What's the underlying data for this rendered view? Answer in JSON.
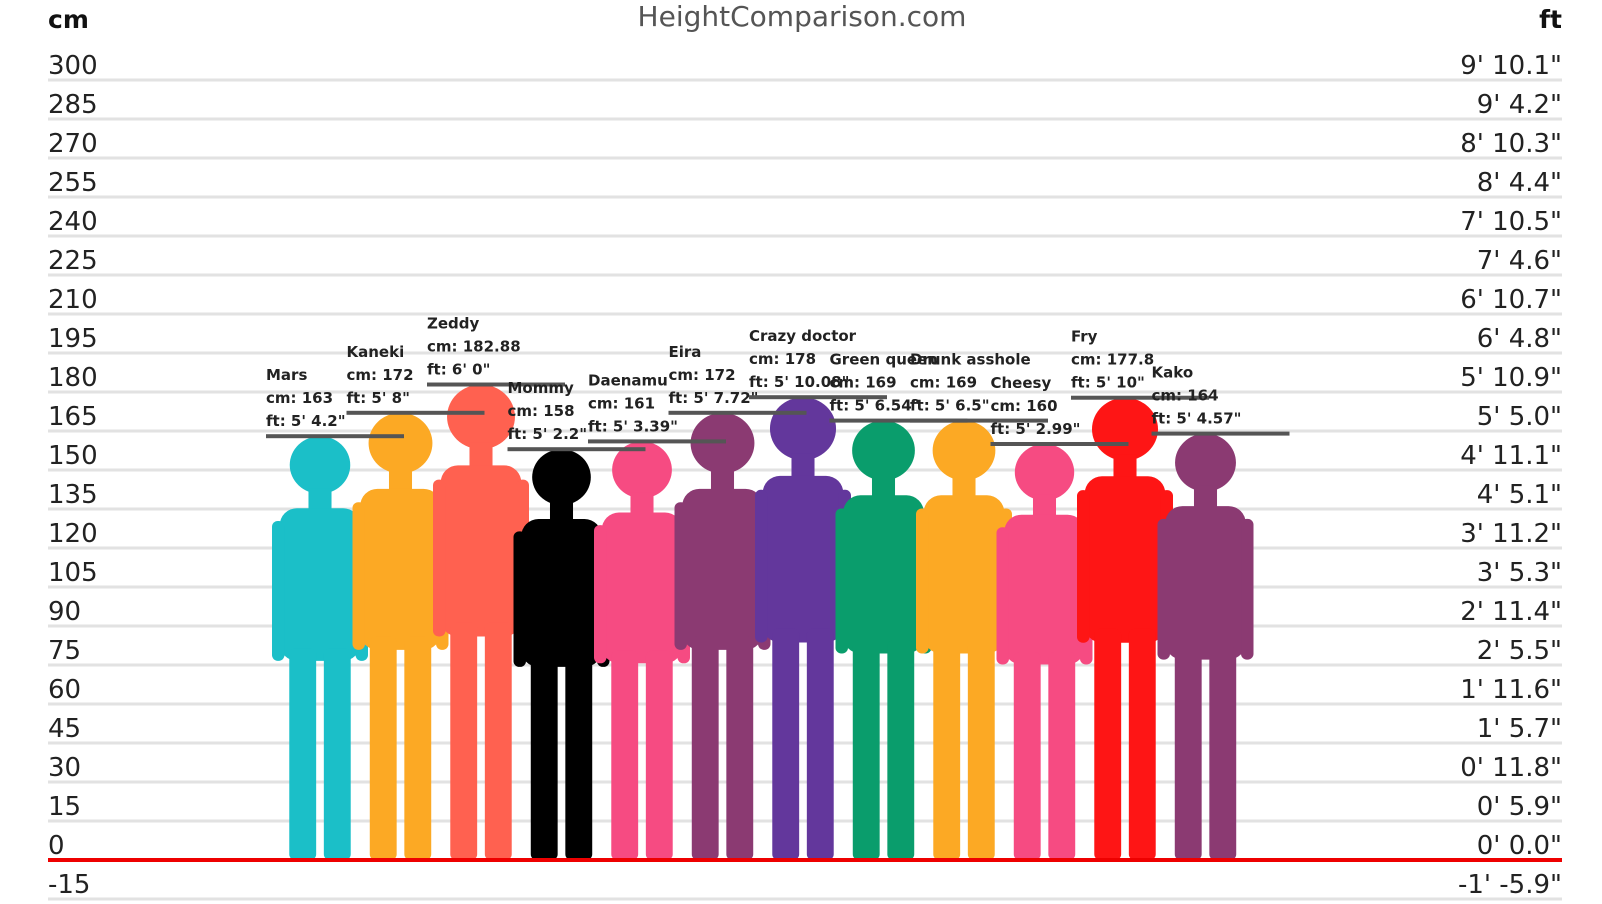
{
  "site_title": "HeightComparison.com",
  "colors": {
    "grid": "#e2e2e2",
    "baseline": "#ee0000",
    "marker": "#555555",
    "text": "#222222"
  },
  "chart_data": {
    "type": "bar",
    "title": "",
    "unit_left": "cm",
    "unit_right": "ft",
    "ylim": [
      -15,
      300
    ],
    "grid": true,
    "ticks": [
      {
        "cm": 300,
        "ft": "9' 10.1\""
      },
      {
        "cm": 285,
        "ft": "9' 4.2\""
      },
      {
        "cm": 270,
        "ft": "8' 10.3\""
      },
      {
        "cm": 255,
        "ft": "8' 4.4\""
      },
      {
        "cm": 240,
        "ft": "7' 10.5\""
      },
      {
        "cm": 225,
        "ft": "7' 4.6\""
      },
      {
        "cm": 210,
        "ft": "6' 10.7\""
      },
      {
        "cm": 195,
        "ft": "6' 4.8\""
      },
      {
        "cm": 180,
        "ft": "5' 10.9\""
      },
      {
        "cm": 165,
        "ft": "5' 5.0\""
      },
      {
        "cm": 150,
        "ft": "4' 11.1\""
      },
      {
        "cm": 135,
        "ft": "4' 5.1\""
      },
      {
        "cm": 120,
        "ft": "3' 11.2\""
      },
      {
        "cm": 105,
        "ft": "3' 5.3\""
      },
      {
        "cm": 90,
        "ft": "2' 11.4\""
      },
      {
        "cm": 75,
        "ft": "2' 5.5\""
      },
      {
        "cm": 60,
        "ft": "1' 11.6\""
      },
      {
        "cm": 45,
        "ft": "1' 5.7\""
      },
      {
        "cm": 30,
        "ft": "0' 11.8\""
      },
      {
        "cm": 15,
        "ft": "0' 5.9\""
      },
      {
        "cm": 0,
        "ft": "0' 0.0\""
      },
      {
        "cm": -15,
        "ft": "-1' -5.9\""
      }
    ],
    "characters": [
      {
        "name": "Mars",
        "cm": 163,
        "cm_text": "cm: 163",
        "ft_text": "ft: 5' 4.2\"",
        "color": "#1bbfc8"
      },
      {
        "name": "Kaneki",
        "cm": 172,
        "cm_text": "cm: 172",
        "ft_text": "ft: 5' 8\"",
        "color": "#fca924"
      },
      {
        "name": "Zeddy",
        "cm": 182.88,
        "cm_text": "cm: 182.88",
        "ft_text": "ft: 6' 0\"",
        "color": "#ff6150"
      },
      {
        "name": "Mommy",
        "cm": 158,
        "cm_text": "cm: 158",
        "ft_text": "ft: 5' 2.2\"",
        "color": "#000000"
      },
      {
        "name": "Daenamu",
        "cm": 161,
        "cm_text": "cm: 161",
        "ft_text": "ft: 5' 3.39\"",
        "color": "#f64b82"
      },
      {
        "name": "Eira",
        "cm": 172,
        "cm_text": "cm: 172",
        "ft_text": "ft: 5' 7.72\"",
        "color": "#8b3a72"
      },
      {
        "name": "Crazy doctor",
        "cm": 178,
        "cm_text": "cm: 178",
        "ft_text": "ft: 5' 10.08\"",
        "color": "#63379c"
      },
      {
        "name": "Green queen",
        "cm": 169,
        "cm_text": "cm: 169",
        "ft_text": "ft: 5' 6.54\"",
        "color": "#0a9d6c"
      },
      {
        "name": "Drunk asshole",
        "cm": 169,
        "cm_text": "cm: 169",
        "ft_text": "ft: 5' 6.5\"",
        "color": "#fca924"
      },
      {
        "name": "Cheesy",
        "cm": 160,
        "cm_text": "cm: 160",
        "ft_text": "ft: 5' 2.99\"",
        "color": "#f64b82"
      },
      {
        "name": "Fry",
        "cm": 177.8,
        "cm_text": "cm: 177.8",
        "ft_text": "ft: 5' 10\"",
        "color": "#fe1515"
      },
      {
        "name": "Kako",
        "cm": 164,
        "cm_text": "cm: 164",
        "ft_text": "ft: 5' 4.57\"",
        "color": "#8b3a72"
      }
    ]
  }
}
